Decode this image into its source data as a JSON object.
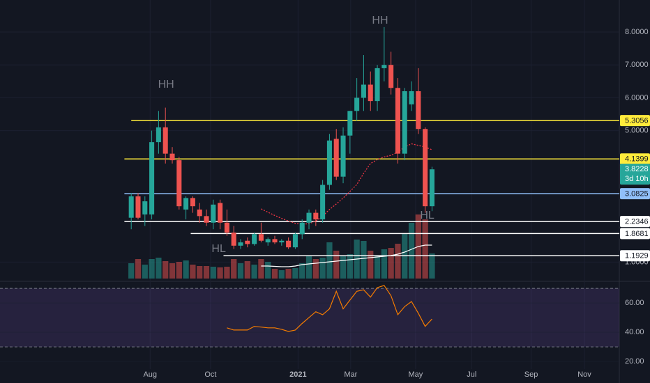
{
  "chart_data": {
    "type": "candlestick",
    "xlim": [
      -19.2,
      71.4
    ],
    "ylim": [
      0.5,
      8.975
    ],
    "yticks": [
      {
        "value": 8,
        "label": "8.0000"
      },
      {
        "value": 7,
        "label": "7.0000"
      },
      {
        "value": 6,
        "label": "6.0000"
      },
      {
        "value": 5,
        "label": "5.0000"
      },
      {
        "value": 1,
        "label": "1.0000"
      }
    ],
    "xticks": [
      {
        "value": 2.76,
        "label": "Aug"
      },
      {
        "value": 11.6,
        "label": "Oct"
      },
      {
        "value": 24.4,
        "label": "2021",
        "bold": true
      },
      {
        "value": 32.1,
        "label": "Mar"
      },
      {
        "value": 41.6,
        "label": "May"
      },
      {
        "value": 49.8,
        "label": "Jul"
      },
      {
        "value": 58.5,
        "label": "Sep"
      },
      {
        "value": 66.3,
        "label": "Nov"
      }
    ],
    "grid": true,
    "up_color": "#26a69a",
    "down_color": "#ef5350",
    "open": [
      2.35,
      3.0,
      2.45,
      2.45,
      4.65,
      5.1,
      4.3,
      4.1,
      2.6,
      2.95,
      2.6,
      2.4,
      2.2,
      2.8,
      2.2,
      1.9,
      1.5,
      1.65,
      1.55,
      1.85,
      1.6,
      1.7,
      1.6,
      1.65,
      1.45,
      1.85,
      2.2,
      2.5,
      2.3,
      3.35,
      4.75,
      3.6,
      4.85,
      5.6,
      6.0,
      6.4,
      5.9,
      6.9,
      7.0,
      6.3,
      4.3,
      5.8,
      6.2,
      5.05,
      2.7
    ],
    "high": [
      3.1,
      3.1,
      3.0,
      5.0,
      5.6,
      5.7,
      4.5,
      4.2,
      3.0,
      3.0,
      2.8,
      2.6,
      2.9,
      2.9,
      2.6,
      2.1,
      1.7,
      1.75,
      1.9,
      2.2,
      1.75,
      1.8,
      1.7,
      1.75,
      1.9,
      2.3,
      2.6,
      2.6,
      3.5,
      4.9,
      5.05,
      5.1,
      5.6,
      6.6,
      7.3,
      6.8,
      7.0,
      8.15,
      7.4,
      6.6,
      6.3,
      6.5,
      6.9,
      5.1,
      3.9
    ],
    "low": [
      2.0,
      2.3,
      2.1,
      2.3,
      4.3,
      4.0,
      4.0,
      2.6,
      2.3,
      2.5,
      2.2,
      2.1,
      2.0,
      2.0,
      1.8,
      1.4,
      1.4,
      1.45,
      1.5,
      1.6,
      1.5,
      1.55,
      1.5,
      1.4,
      1.4,
      1.7,
      2.0,
      2.1,
      2.2,
      3.2,
      3.5,
      3.4,
      4.3,
      5.3,
      5.6,
      5.6,
      5.6,
      6.5,
      6.1,
      4.0,
      4.1,
      5.6,
      4.9,
      2.5,
      2.55
    ],
    "close": [
      3.0,
      2.35,
      2.85,
      4.65,
      5.1,
      4.3,
      4.1,
      2.7,
      2.95,
      2.7,
      2.4,
      2.2,
      2.75,
      2.2,
      1.9,
      1.5,
      1.6,
      1.55,
      1.85,
      1.65,
      1.7,
      1.6,
      1.65,
      1.45,
      1.85,
      2.2,
      2.5,
      2.3,
      3.35,
      4.7,
      3.6,
      4.85,
      5.6,
      6.0,
      6.4,
      5.9,
      6.9,
      7.0,
      6.3,
      4.3,
      6.2,
      6.2,
      5.05,
      2.7,
      3.8228
    ],
    "volume": [
      22,
      28,
      20,
      28,
      30,
      25,
      22,
      24,
      26,
      20,
      18,
      18,
      17,
      16,
      17,
      28,
      22,
      25,
      20,
      28,
      24,
      14,
      12,
      14,
      15,
      22,
      32,
      28,
      30,
      52,
      40,
      32,
      35,
      56,
      54,
      40,
      32,
      42,
      44,
      50,
      65,
      80,
      92,
      85,
      36
    ],
    "volume_lim": [
      0,
      100
    ],
    "volume_ma": [
      null,
      null,
      null,
      null,
      null,
      null,
      null,
      null,
      null,
      null,
      null,
      null,
      null,
      null,
      null,
      null,
      null,
      null,
      null,
      18,
      18,
      17.5,
      17,
      17,
      18,
      20,
      21,
      22,
      23,
      24,
      25,
      26,
      27,
      28,
      29,
      30,
      31,
      32,
      33,
      35,
      38,
      42,
      46,
      48,
      48
    ],
    "volume_ma_color": "#ffffff",
    "ma": [
      null,
      null,
      null,
      null,
      null,
      null,
      null,
      null,
      null,
      null,
      null,
      null,
      null,
      null,
      null,
      null,
      null,
      null,
      null,
      2.62,
      2.52,
      2.42,
      2.33,
      2.25,
      2.18,
      2.15,
      2.17,
      2.25,
      2.4,
      2.6,
      2.77,
      2.95,
      3.15,
      3.36,
      3.7,
      4.0,
      4.12,
      4.2,
      4.25,
      4.35,
      4.5,
      4.6,
      4.55,
      4.5,
      4.42
    ],
    "ma_color": "#f23645",
    "levels": [
      {
        "value": 5.3056,
        "label": "5.3056",
        "color": "#ffeb3b",
        "from": 0
      },
      {
        "value": 4.1399,
        "label": "4.1399",
        "color": "#ffeb3b",
        "from": -1
      },
      {
        "value": 3.0825,
        "label": "3.0825",
        "color": "#90bff9",
        "from": -1
      },
      {
        "value": 2.2346,
        "label": "2.2346",
        "color": "#ffffff",
        "from": -1
      },
      {
        "value": 1.8681,
        "label": "1.8681",
        "color": "#ffffff",
        "from": 8.7
      },
      {
        "value": 1.1929,
        "label": "1.1929",
        "color": "#ffffff",
        "from": 13.5
      }
    ],
    "last_price": {
      "value": 3.8228,
      "label": "3.8228",
      "countdown": "3d 10h"
    },
    "annotations": [
      {
        "text": "HH",
        "x": 5.1,
        "y": 6.39
      },
      {
        "text": "HH",
        "x": 36.4,
        "y": 8.34
      },
      {
        "text": "HL",
        "x": 43.3,
        "y": 2.41
      },
      {
        "text": "HL",
        "x": 12.8,
        "y": 1.39
      }
    ],
    "rsi": {
      "values": [
        null,
        null,
        null,
        null,
        null,
        null,
        null,
        null,
        null,
        null,
        null,
        null,
        null,
        null,
        43,
        41.5,
        41.5,
        41.5,
        44,
        43.5,
        43,
        43,
        42,
        40.5,
        41.5,
        46,
        50,
        54,
        52,
        56,
        68,
        56,
        62,
        68,
        69,
        64,
        70.5,
        72,
        65,
        52,
        57.5,
        61,
        53,
        44,
        49
      ],
      "ylim": [
        14.8,
        72.9
      ],
      "yticks": [
        {
          "value": 60,
          "label": "60.00"
        },
        {
          "value": 40,
          "label": "40.00"
        },
        {
          "value": 20,
          "label": "20.00"
        }
      ],
      "levels": [
        70,
        30
      ],
      "color": "#f57c00"
    }
  }
}
